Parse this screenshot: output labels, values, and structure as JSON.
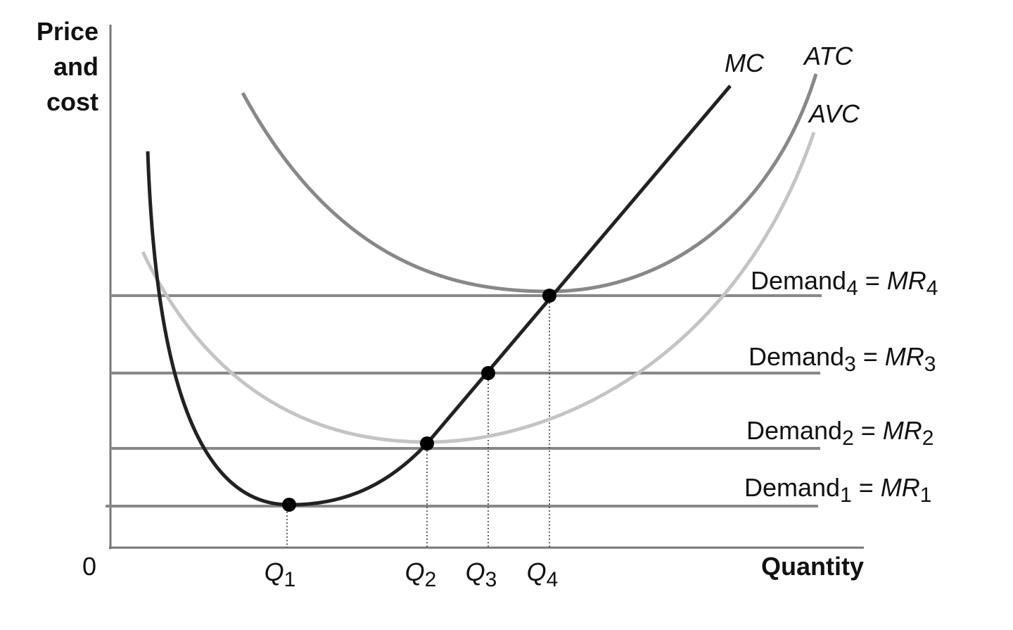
{
  "axes": {
    "y_label": [
      "Price",
      "and",
      "cost"
    ],
    "x_label": "Quantity",
    "origin": "0"
  },
  "curves": {
    "mc": "MC",
    "atc": "ATC",
    "avc": "AVC"
  },
  "quantities": [
    {
      "letter": "Q",
      "sub": "1"
    },
    {
      "letter": "Q",
      "sub": "2"
    },
    {
      "letter": "Q",
      "sub": "3"
    },
    {
      "letter": "Q",
      "sub": "4"
    }
  ],
  "demand": [
    {
      "name": "Demand",
      "sub": "1",
      "sep": "=",
      "mr": "MR",
      "mr_sub": "1"
    },
    {
      "name": "Demand",
      "sub": "2",
      "sep": "=",
      "mr": "MR",
      "mr_sub": "2"
    },
    {
      "name": "Demand",
      "sub": "3",
      "sep": "=",
      "mr": "MR",
      "mr_sub": "3"
    },
    {
      "name": "Demand",
      "sub": "4",
      "sep": "=",
      "mr": "MR",
      "mr_sub": "4"
    }
  ]
}
